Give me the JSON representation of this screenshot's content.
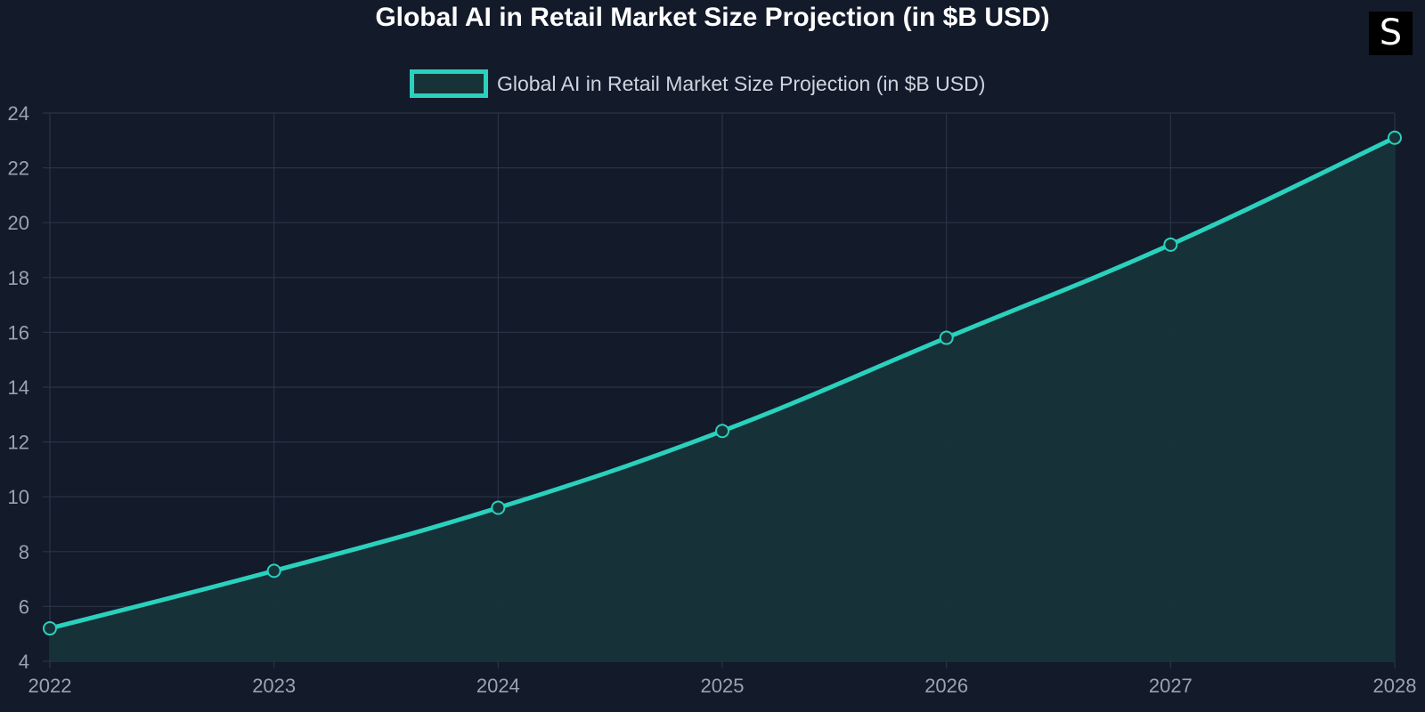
{
  "chart_data": {
    "type": "area",
    "title": "Global AI in Retail Market Size Projection (in $B USD)",
    "categories": [
      "2022",
      "2023",
      "2024",
      "2025",
      "2026",
      "2027",
      "2028"
    ],
    "series": [
      {
        "name": "Global AI in Retail Market Size Projection (in $B USD)",
        "values": [
          5.2,
          7.3,
          9.6,
          12.4,
          15.8,
          19.2,
          23.1
        ]
      }
    ],
    "ylim": [
      4,
      24
    ],
    "yticks": [
      "4",
      "6",
      "8",
      "10",
      "12",
      "14",
      "16",
      "18",
      "20",
      "22",
      "24"
    ],
    "grid": true,
    "legend_position": "top-center",
    "colors": {
      "line": "#2ad1bd",
      "fill": "#163338",
      "grid": "#2b3445",
      "background": "#131a2a"
    }
  },
  "logo": {
    "glyph": "S"
  }
}
